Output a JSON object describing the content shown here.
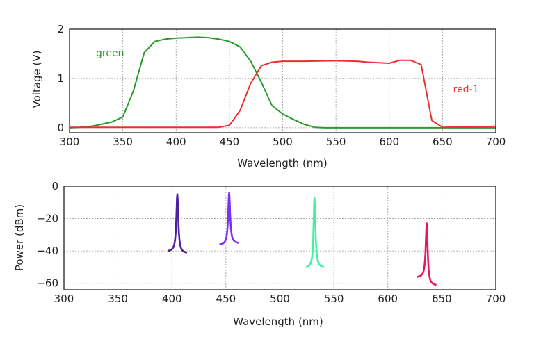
{
  "chart_data": [
    {
      "type": "line",
      "xlabel": "Wavelength (nm)",
      "ylabel": "Voltage (V)",
      "xlim": [
        300,
        700
      ],
      "ylim": [
        -0.1,
        2.0
      ],
      "x_ticks": [
        300,
        350,
        400,
        450,
        500,
        550,
        600,
        650,
        700
      ],
      "y_ticks": [
        0,
        1,
        2
      ],
      "grid": true,
      "series": [
        {
          "name": "green",
          "color": "#2a9a2a",
          "x": [
            300,
            310,
            320,
            330,
            340,
            350,
            360,
            370,
            380,
            390,
            400,
            410,
            420,
            430,
            440,
            450,
            460,
            470,
            480,
            490,
            500,
            510,
            520,
            530,
            540,
            550,
            600,
            650,
            700
          ],
          "y": [
            0,
            0.01,
            0.03,
            0.07,
            0.12,
            0.22,
            0.75,
            1.52,
            1.75,
            1.8,
            1.82,
            1.83,
            1.84,
            1.83,
            1.8,
            1.75,
            1.64,
            1.35,
            0.92,
            0.45,
            0.28,
            0.17,
            0.07,
            0.01,
            0,
            0,
            0,
            0,
            0
          ]
        },
        {
          "name": "red-1",
          "color": "#e8312f",
          "x": [
            300,
            350,
            400,
            440,
            450,
            460,
            470,
            480,
            490,
            500,
            520,
            550,
            570,
            580,
            600,
            610,
            620,
            630,
            640,
            650,
            700
          ],
          "y": [
            0.01,
            0.01,
            0.01,
            0.01,
            0.05,
            0.35,
            0.9,
            1.26,
            1.33,
            1.35,
            1.35,
            1.36,
            1.35,
            1.33,
            1.31,
            1.37,
            1.37,
            1.28,
            0.15,
            0.01,
            0.03
          ]
        }
      ],
      "annotations": [
        {
          "text": "green",
          "x": 338,
          "y": 1.45,
          "color": "#2a9a2a"
        },
        {
          "text": "red-1",
          "x": 672,
          "y": 0.72,
          "color": "#e8312f"
        }
      ]
    },
    {
      "type": "line",
      "xlabel": "Wavelength (nm)",
      "ylabel": "Power (dBm)",
      "xlim": [
        300,
        700
      ],
      "ylim": [
        -64,
        0
      ],
      "x_ticks": [
        300,
        350,
        400,
        450,
        500,
        550,
        600,
        650,
        700
      ],
      "y_ticks": [
        0,
        -20,
        -40,
        -60
      ],
      "y_tick_labels": [
        "0",
        "−20",
        "−40",
        "−60"
      ],
      "grid": true,
      "series": [
        {
          "color": "#4b1fa0",
          "peak_x": 405,
          "peak_y": -5,
          "left_x": 396,
          "left_y": -40,
          "right_x": 414,
          "right_y": -41
        },
        {
          "color": "#7b2ff7",
          "peak_x": 453,
          "peak_y": -4,
          "left_x": 444,
          "left_y": -36,
          "right_x": 462,
          "right_y": -35
        },
        {
          "color": "#3ff2a0",
          "peak_x": 532,
          "peak_y": -7,
          "left_x": 524,
          "left_y": -50,
          "right_x": 541,
          "right_y": -50
        },
        {
          "color": "#e8165a",
          "peak_x": 636,
          "peak_y": -23,
          "left_x": 627,
          "left_y": -56,
          "right_x": 645,
          "right_y": -61
        }
      ]
    }
  ]
}
